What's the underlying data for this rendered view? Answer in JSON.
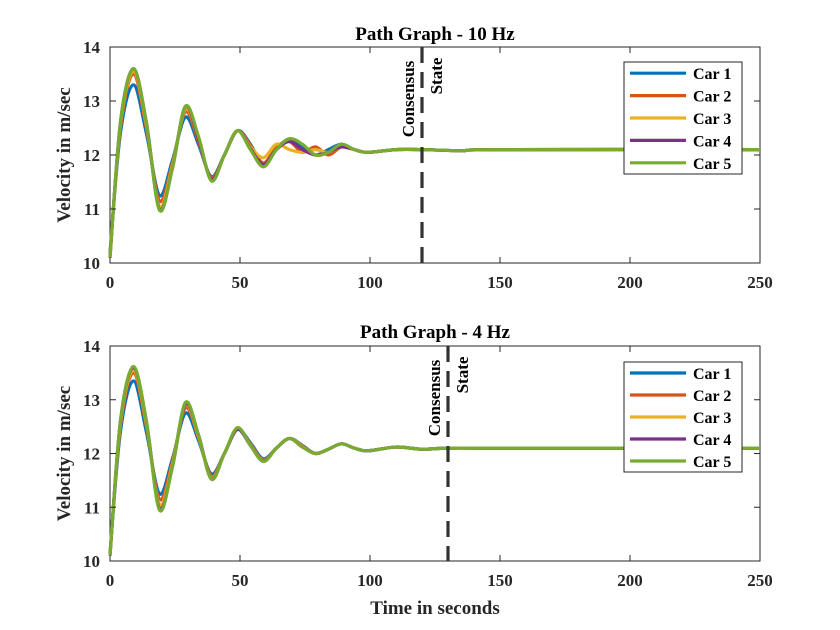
{
  "chart_data": [
    {
      "type": "line",
      "title": "Path Graph - 10 Hz",
      "xlabel": "",
      "ylabel": "Velocity in m/sec",
      "xlim": [
        0,
        250
      ],
      "ylim": [
        10,
        14
      ],
      "xticks": [
        "0",
        "50",
        "100",
        "150",
        "200",
        "250"
      ],
      "yticks": [
        "10",
        "11",
        "12",
        "13",
        "14"
      ],
      "grid": false,
      "legend_position": "top-right",
      "annotation": {
        "line1": "Consensus",
        "line2": "State",
        "x": 120
      },
      "series": [
        {
          "name": "Car 1",
          "color": "#0072BD",
          "x": [
            0,
            4,
            9,
            14,
            19,
            24,
            29,
            34,
            39,
            44,
            49,
            54,
            59,
            64,
            69,
            74,
            79,
            84,
            89,
            94,
            99,
            110,
            120,
            135,
            150,
            250
          ],
          "y": [
            10.2,
            12.4,
            13.3,
            12.4,
            11.25,
            11.9,
            12.7,
            12.2,
            11.6,
            12.0,
            12.45,
            12.2,
            11.8,
            12.1,
            12.3,
            12.15,
            12.0,
            12.1,
            12.2,
            12.1,
            12.05,
            12.1,
            12.1,
            12.08,
            12.1,
            12.1
          ]
        },
        {
          "name": "Car 2",
          "color": "#D95319",
          "x": [
            0,
            4,
            9,
            14,
            19,
            24,
            29,
            34,
            39,
            44,
            49,
            54,
            59,
            64,
            69,
            74,
            79,
            84,
            89,
            94,
            99,
            110,
            120,
            135,
            150,
            250
          ],
          "y": [
            10.15,
            12.5,
            13.5,
            12.5,
            11.15,
            11.85,
            12.8,
            12.25,
            11.58,
            12.0,
            12.45,
            12.18,
            11.85,
            12.15,
            12.25,
            12.05,
            12.15,
            12.0,
            12.15,
            12.1,
            12.05,
            12.1,
            12.1,
            12.08,
            12.1,
            12.1
          ]
        },
        {
          "name": "Car 3",
          "color": "#EDB120",
          "x": [
            0,
            4,
            9,
            14,
            19,
            24,
            29,
            34,
            39,
            44,
            49,
            54,
            59,
            64,
            69,
            74,
            79,
            84,
            89,
            94,
            99,
            110,
            120,
            135,
            150,
            250
          ],
          "y": [
            10.1,
            12.55,
            13.55,
            12.55,
            11.05,
            11.8,
            12.85,
            12.3,
            11.55,
            12.0,
            12.45,
            12.15,
            11.95,
            12.2,
            12.1,
            12.05,
            12.1,
            12.05,
            12.15,
            12.1,
            12.05,
            12.1,
            12.1,
            12.08,
            12.1,
            12.1
          ]
        },
        {
          "name": "Car 4",
          "color": "#7E2F8E",
          "x": [
            0,
            4,
            9,
            14,
            19,
            24,
            29,
            34,
            39,
            44,
            49,
            54,
            59,
            64,
            69,
            74,
            79,
            84,
            89,
            94,
            99,
            110,
            120,
            135,
            150,
            250
          ],
          "y": [
            10.1,
            12.6,
            13.6,
            12.6,
            11.0,
            11.75,
            12.9,
            12.3,
            11.55,
            12.0,
            12.45,
            12.12,
            11.82,
            12.1,
            12.25,
            12.1,
            12.0,
            12.05,
            12.15,
            12.1,
            12.05,
            12.1,
            12.1,
            12.08,
            12.1,
            12.1
          ]
        },
        {
          "name": "Car 5",
          "color": "#77AC30",
          "x": [
            0,
            4,
            9,
            14,
            19,
            24,
            29,
            34,
            39,
            44,
            49,
            54,
            59,
            64,
            69,
            74,
            79,
            84,
            89,
            94,
            99,
            110,
            120,
            135,
            150,
            250
          ],
          "y": [
            10.1,
            12.6,
            13.6,
            12.6,
            10.98,
            11.75,
            12.9,
            12.35,
            11.52,
            12.0,
            12.45,
            12.1,
            11.78,
            12.1,
            12.3,
            12.2,
            12.0,
            12.05,
            12.2,
            12.1,
            12.05,
            12.1,
            12.1,
            12.08,
            12.1,
            12.1
          ]
        }
      ]
    },
    {
      "type": "line",
      "title": "Path Graph - 4 Hz",
      "xlabel": "Time in seconds",
      "ylabel": "Velocity in m/sec",
      "xlim": [
        0,
        250
      ],
      "ylim": [
        10,
        14
      ],
      "xticks": [
        "0",
        "50",
        "100",
        "150",
        "200",
        "250"
      ],
      "yticks": [
        "10",
        "11",
        "12",
        "13",
        "14"
      ],
      "grid": false,
      "legend_position": "top-right",
      "annotation": {
        "line1": "Consensus",
        "line2": "State",
        "x": 130
      },
      "series": [
        {
          "name": "Car 1",
          "color": "#0072BD",
          "x": [
            0,
            4,
            9,
            14,
            19,
            24,
            29,
            34,
            39,
            44,
            49,
            54,
            59,
            64,
            69,
            74,
            79,
            84,
            89,
            94,
            99,
            110,
            120,
            130,
            150,
            250
          ],
          "y": [
            10.15,
            12.4,
            13.35,
            12.4,
            11.25,
            11.9,
            12.75,
            12.25,
            11.62,
            12.0,
            12.45,
            12.2,
            11.9,
            12.1,
            12.28,
            12.15,
            12.0,
            12.08,
            12.18,
            12.1,
            12.05,
            12.12,
            12.08,
            12.1,
            12.1,
            12.1
          ]
        },
        {
          "name": "Car 2",
          "color": "#D95319",
          "x": [
            0,
            4,
            9,
            14,
            19,
            24,
            29,
            34,
            39,
            44,
            49,
            54,
            59,
            64,
            69,
            74,
            79,
            84,
            89,
            94,
            99,
            110,
            120,
            130,
            150,
            250
          ],
          "y": [
            10.12,
            12.5,
            13.5,
            12.5,
            11.15,
            11.85,
            12.85,
            12.3,
            11.58,
            12.0,
            12.45,
            12.18,
            11.88,
            12.1,
            12.28,
            12.14,
            12.0,
            12.08,
            12.18,
            12.1,
            12.05,
            12.12,
            12.08,
            12.1,
            12.1,
            12.1
          ]
        },
        {
          "name": "Car 3",
          "color": "#EDB120",
          "x": [
            0,
            4,
            9,
            14,
            19,
            24,
            29,
            34,
            39,
            44,
            49,
            54,
            59,
            64,
            69,
            74,
            79,
            84,
            89,
            94,
            99,
            110,
            120,
            130,
            150,
            250
          ],
          "y": [
            10.1,
            12.55,
            13.55,
            12.55,
            11.05,
            11.8,
            12.9,
            12.32,
            11.55,
            12.0,
            12.45,
            12.16,
            11.87,
            12.1,
            12.28,
            12.13,
            12.0,
            12.08,
            12.18,
            12.1,
            12.05,
            12.12,
            12.08,
            12.1,
            12.1,
            12.1
          ]
        },
        {
          "name": "Car 4",
          "color": "#7E2F8E",
          "x": [
            0,
            4,
            9,
            14,
            19,
            24,
            29,
            34,
            39,
            44,
            49,
            54,
            59,
            64,
            69,
            74,
            79,
            84,
            89,
            94,
            99,
            110,
            120,
            130,
            150,
            250
          ],
          "y": [
            10.1,
            12.6,
            13.6,
            12.6,
            10.98,
            11.75,
            12.92,
            12.35,
            11.53,
            12.0,
            12.45,
            12.15,
            11.86,
            12.1,
            12.28,
            12.12,
            12.0,
            12.08,
            12.18,
            12.1,
            12.05,
            12.12,
            12.08,
            12.1,
            12.1,
            12.1
          ]
        },
        {
          "name": "Car 5",
          "color": "#77AC30",
          "x": [
            0,
            4,
            9,
            14,
            19,
            24,
            29,
            34,
            39,
            44,
            49,
            54,
            59,
            64,
            69,
            74,
            79,
            84,
            89,
            94,
            99,
            110,
            120,
            130,
            150,
            250
          ],
          "y": [
            10.1,
            12.6,
            13.62,
            12.6,
            10.95,
            11.75,
            12.95,
            12.35,
            11.52,
            12.0,
            12.48,
            12.15,
            11.85,
            12.1,
            12.28,
            12.12,
            12.0,
            12.08,
            12.18,
            12.1,
            12.05,
            12.12,
            12.08,
            12.1,
            12.1,
            12.1
          ]
        }
      ]
    }
  ]
}
